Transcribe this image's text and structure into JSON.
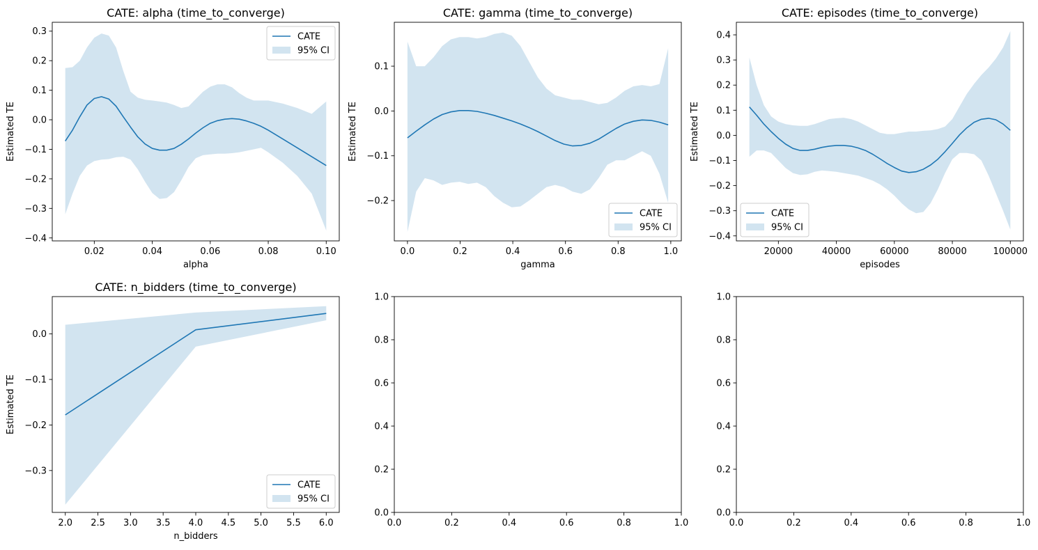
{
  "colors": {
    "line": "#1f77b4",
    "ci_fill": "#1f77b4",
    "ci_alpha": 0.2,
    "axes": "#000000",
    "background": "#ffffff"
  },
  "chart_data": [
    {
      "type": "line",
      "title": "CATE: alpha (time_to_converge)",
      "xlabel": "alpha",
      "ylabel": "Estimated TE",
      "xlim": [
        0.0055,
        0.1045
      ],
      "ylim": [
        -0.41,
        0.33
      ],
      "xticks": [
        0.02,
        0.04,
        0.06,
        0.08,
        0.1
      ],
      "xtick_labels": [
        "0.02",
        "0.04",
        "0.06",
        "0.08",
        "0.10"
      ],
      "yticks": [
        -0.4,
        -0.3,
        -0.2,
        -0.1,
        0.0,
        0.1,
        0.2,
        0.3
      ],
      "ytick_labels": [
        "−0.4",
        "−0.3",
        "−0.2",
        "−0.1",
        "0.0",
        "0.1",
        "0.2",
        "0.3"
      ],
      "legend": {
        "position": "upper-right",
        "entries": [
          "CATE",
          "95% CI"
        ]
      },
      "series": [
        {
          "name": "CATE",
          "x": [
            0.01,
            0.0125,
            0.015,
            0.0175,
            0.02,
            0.0225,
            0.025,
            0.0275,
            0.03,
            0.0325,
            0.035,
            0.0375,
            0.04,
            0.0425,
            0.045,
            0.0475,
            0.05,
            0.0525,
            0.055,
            0.0575,
            0.06,
            0.0625,
            0.065,
            0.0675,
            0.07,
            0.0725,
            0.075,
            0.0775,
            0.08,
            0.085,
            0.09,
            0.095,
            0.1
          ],
          "y": [
            -0.072,
            -0.035,
            0.01,
            0.05,
            0.072,
            0.078,
            0.07,
            0.046,
            0.01,
            -0.025,
            -0.058,
            -0.082,
            -0.097,
            -0.103,
            -0.103,
            -0.097,
            -0.083,
            -0.065,
            -0.045,
            -0.027,
            -0.012,
            -0.003,
            0.002,
            0.004,
            0.002,
            -0.004,
            -0.012,
            -0.022,
            -0.035,
            -0.065,
            -0.095,
            -0.125,
            -0.155
          ],
          "lower": [
            -0.32,
            -0.25,
            -0.19,
            -0.155,
            -0.14,
            -0.135,
            -0.133,
            -0.127,
            -0.125,
            -0.135,
            -0.168,
            -0.21,
            -0.248,
            -0.268,
            -0.265,
            -0.245,
            -0.205,
            -0.16,
            -0.13,
            -0.12,
            -0.117,
            -0.115,
            -0.115,
            -0.113,
            -0.11,
            -0.105,
            -0.1,
            -0.095,
            -0.11,
            -0.145,
            -0.19,
            -0.25,
            -0.375
          ],
          "upper": [
            0.175,
            0.178,
            0.2,
            0.245,
            0.278,
            0.292,
            0.285,
            0.245,
            0.165,
            0.095,
            0.075,
            0.068,
            0.065,
            0.062,
            0.058,
            0.05,
            0.04,
            0.045,
            0.07,
            0.095,
            0.112,
            0.12,
            0.12,
            0.11,
            0.09,
            0.075,
            0.065,
            0.065,
            0.065,
            0.055,
            0.04,
            0.02,
            0.062
          ]
        }
      ]
    },
    {
      "type": "line",
      "title": "CATE: gamma (time_to_converge)",
      "xlabel": "gamma",
      "ylabel": "Estimated TE",
      "xlim": [
        -0.05,
        1.04
      ],
      "ylim": [
        -0.29,
        0.198
      ],
      "xticks": [
        0.0,
        0.2,
        0.4,
        0.6,
        0.8,
        1.0
      ],
      "xtick_labels": [
        "0.0",
        "0.2",
        "0.4",
        "0.6",
        "0.8",
        "1.0"
      ],
      "yticks": [
        -0.2,
        -0.1,
        0.0,
        0.1
      ],
      "ytick_labels": [
        "−0.2",
        "−0.1",
        "0.0",
        "0.1"
      ],
      "legend": {
        "position": "lower-right",
        "entries": [
          "CATE",
          "95% CI"
        ]
      },
      "series": [
        {
          "name": "CATE",
          "x": [
            0.0,
            0.033,
            0.066,
            0.099,
            0.132,
            0.165,
            0.198,
            0.231,
            0.264,
            0.297,
            0.33,
            0.363,
            0.396,
            0.429,
            0.462,
            0.495,
            0.528,
            0.561,
            0.594,
            0.627,
            0.66,
            0.693,
            0.726,
            0.759,
            0.792,
            0.825,
            0.858,
            0.891,
            0.924,
            0.957,
            0.99
          ],
          "y": [
            -0.06,
            -0.045,
            -0.031,
            -0.018,
            -0.008,
            -0.002,
            0.001,
            0.001,
            -0.001,
            -0.005,
            -0.01,
            -0.016,
            -0.022,
            -0.029,
            -0.037,
            -0.046,
            -0.056,
            -0.066,
            -0.074,
            -0.078,
            -0.077,
            -0.072,
            -0.063,
            -0.051,
            -0.039,
            -0.029,
            -0.023,
            -0.02,
            -0.021,
            -0.025,
            -0.031
          ],
          "lower": [
            -0.27,
            -0.18,
            -0.15,
            -0.155,
            -0.165,
            -0.16,
            -0.158,
            -0.163,
            -0.16,
            -0.17,
            -0.19,
            -0.205,
            -0.215,
            -0.213,
            -0.2,
            -0.185,
            -0.17,
            -0.165,
            -0.17,
            -0.18,
            -0.185,
            -0.175,
            -0.15,
            -0.12,
            -0.11,
            -0.11,
            -0.1,
            -0.09,
            -0.1,
            -0.14,
            -0.205
          ],
          "upper": [
            0.155,
            0.1,
            0.1,
            0.12,
            0.145,
            0.16,
            0.165,
            0.165,
            0.162,
            0.165,
            0.172,
            0.175,
            0.168,
            0.145,
            0.11,
            0.075,
            0.05,
            0.035,
            0.03,
            0.025,
            0.025,
            0.02,
            0.015,
            0.018,
            0.03,
            0.045,
            0.055,
            0.058,
            0.055,
            0.06,
            0.14
          ]
        }
      ]
    },
    {
      "type": "line",
      "title": "CATE: episodes (time_to_converge)",
      "xlabel": "episodes",
      "ylabel": "Estimated TE",
      "xlim": [
        5500,
        104500
      ],
      "ylim": [
        -0.42,
        0.45
      ],
      "xticks": [
        20000,
        40000,
        60000,
        80000,
        100000
      ],
      "xtick_labels": [
        "20000",
        "40000",
        "60000",
        "80000",
        "100000"
      ],
      "yticks": [
        -0.4,
        -0.3,
        -0.2,
        -0.1,
        0.0,
        0.1,
        0.2,
        0.3,
        0.4
      ],
      "ytick_labels": [
        "−0.4",
        "−0.3",
        "−0.2",
        "−0.1",
        "0.0",
        "0.1",
        "0.2",
        "0.3",
        "0.4"
      ],
      "legend": {
        "position": "lower-left",
        "entries": [
          "CATE",
          "95% CI"
        ]
      },
      "series": [
        {
          "name": "CATE",
          "x": [
            10000,
            12500,
            15000,
            17500,
            20000,
            22500,
            25000,
            27500,
            30000,
            32500,
            35000,
            37500,
            40000,
            42500,
            45000,
            47500,
            50000,
            52500,
            55000,
            57500,
            60000,
            62500,
            65000,
            67500,
            70000,
            72500,
            75000,
            77500,
            80000,
            82500,
            85000,
            87500,
            90000,
            92500,
            95000,
            97500,
            100000
          ],
          "y": [
            0.113,
            0.08,
            0.045,
            0.015,
            -0.012,
            -0.035,
            -0.052,
            -0.06,
            -0.06,
            -0.055,
            -0.048,
            -0.043,
            -0.04,
            -0.04,
            -0.043,
            -0.05,
            -0.06,
            -0.075,
            -0.093,
            -0.112,
            -0.128,
            -0.142,
            -0.148,
            -0.145,
            -0.135,
            -0.118,
            -0.095,
            -0.065,
            -0.032,
            0.002,
            0.03,
            0.052,
            0.064,
            0.068,
            0.062,
            0.045,
            0.02
          ],
          "lower": [
            -0.085,
            -0.06,
            -0.06,
            -0.07,
            -0.1,
            -0.13,
            -0.15,
            -0.158,
            -0.155,
            -0.145,
            -0.14,
            -0.142,
            -0.145,
            -0.15,
            -0.155,
            -0.16,
            -0.17,
            -0.18,
            -0.195,
            -0.215,
            -0.24,
            -0.27,
            -0.295,
            -0.31,
            -0.305,
            -0.27,
            -0.215,
            -0.15,
            -0.095,
            -0.07,
            -0.07,
            -0.075,
            -0.1,
            -0.16,
            -0.23,
            -0.3,
            -0.375
          ],
          "upper": [
            0.31,
            0.2,
            0.12,
            0.075,
            0.055,
            0.045,
            0.04,
            0.038,
            0.038,
            0.045,
            0.055,
            0.065,
            0.068,
            0.07,
            0.065,
            0.055,
            0.04,
            0.025,
            0.01,
            0.005,
            0.005,
            0.01,
            0.015,
            0.015,
            0.018,
            0.02,
            0.025,
            0.035,
            0.065,
            0.115,
            0.165,
            0.205,
            0.24,
            0.27,
            0.305,
            0.35,
            0.415
          ]
        }
      ]
    },
    {
      "type": "line",
      "title": "CATE: n_bidders (time_to_converge)",
      "xlabel": "n_bidders",
      "ylabel": "Estimated TE",
      "xlim": [
        1.8,
        6.2
      ],
      "ylim": [
        -0.392,
        0.082
      ],
      "xticks": [
        2.0,
        2.5,
        3.0,
        3.5,
        4.0,
        4.5,
        5.0,
        5.5,
        6.0
      ],
      "xtick_labels": [
        "2.0",
        "2.5",
        "3.0",
        "3.5",
        "4.0",
        "4.5",
        "5.0",
        "5.5",
        "6.0"
      ],
      "yticks": [
        -0.3,
        -0.2,
        -0.1,
        0.0
      ],
      "ytick_labels": [
        "−0.3",
        "−0.2",
        "−0.1",
        "0.0"
      ],
      "legend": {
        "position": "lower-right",
        "entries": [
          "CATE",
          "95% CI"
        ]
      },
      "series": [
        {
          "name": "CATE",
          "x": [
            2,
            4,
            6
          ],
          "y": [
            -0.178,
            0.009,
            0.045
          ],
          "lower": [
            -0.375,
            -0.028,
            0.03
          ],
          "upper": [
            0.02,
            0.047,
            0.061
          ]
        }
      ]
    },
    {
      "type": "line",
      "title": "",
      "xlabel": "",
      "ylabel": "",
      "xlim": [
        0,
        1
      ],
      "ylim": [
        0,
        1
      ],
      "xticks": [
        0.0,
        0.2,
        0.4,
        0.6,
        0.8,
        1.0
      ],
      "xtick_labels": [
        "0.0",
        "0.2",
        "0.4",
        "0.6",
        "0.8",
        "1.0"
      ],
      "yticks": [
        0.0,
        0.2,
        0.4,
        0.6,
        0.8,
        1.0
      ],
      "ytick_labels": [
        "0.0",
        "0.2",
        "0.4",
        "0.6",
        "0.8",
        "1.0"
      ],
      "series": []
    },
    {
      "type": "line",
      "title": "",
      "xlabel": "",
      "ylabel": "",
      "xlim": [
        0,
        1
      ],
      "ylim": [
        0,
        1
      ],
      "xticks": [
        0.0,
        0.2,
        0.4,
        0.6,
        0.8,
        1.0
      ],
      "xtick_labels": [
        "0.0",
        "0.2",
        "0.4",
        "0.6",
        "0.8",
        "1.0"
      ],
      "yticks": [
        0.0,
        0.2,
        0.4,
        0.6,
        0.8,
        1.0
      ],
      "ytick_labels": [
        "0.0",
        "0.2",
        "0.4",
        "0.6",
        "0.8",
        "1.0"
      ],
      "series": []
    }
  ]
}
